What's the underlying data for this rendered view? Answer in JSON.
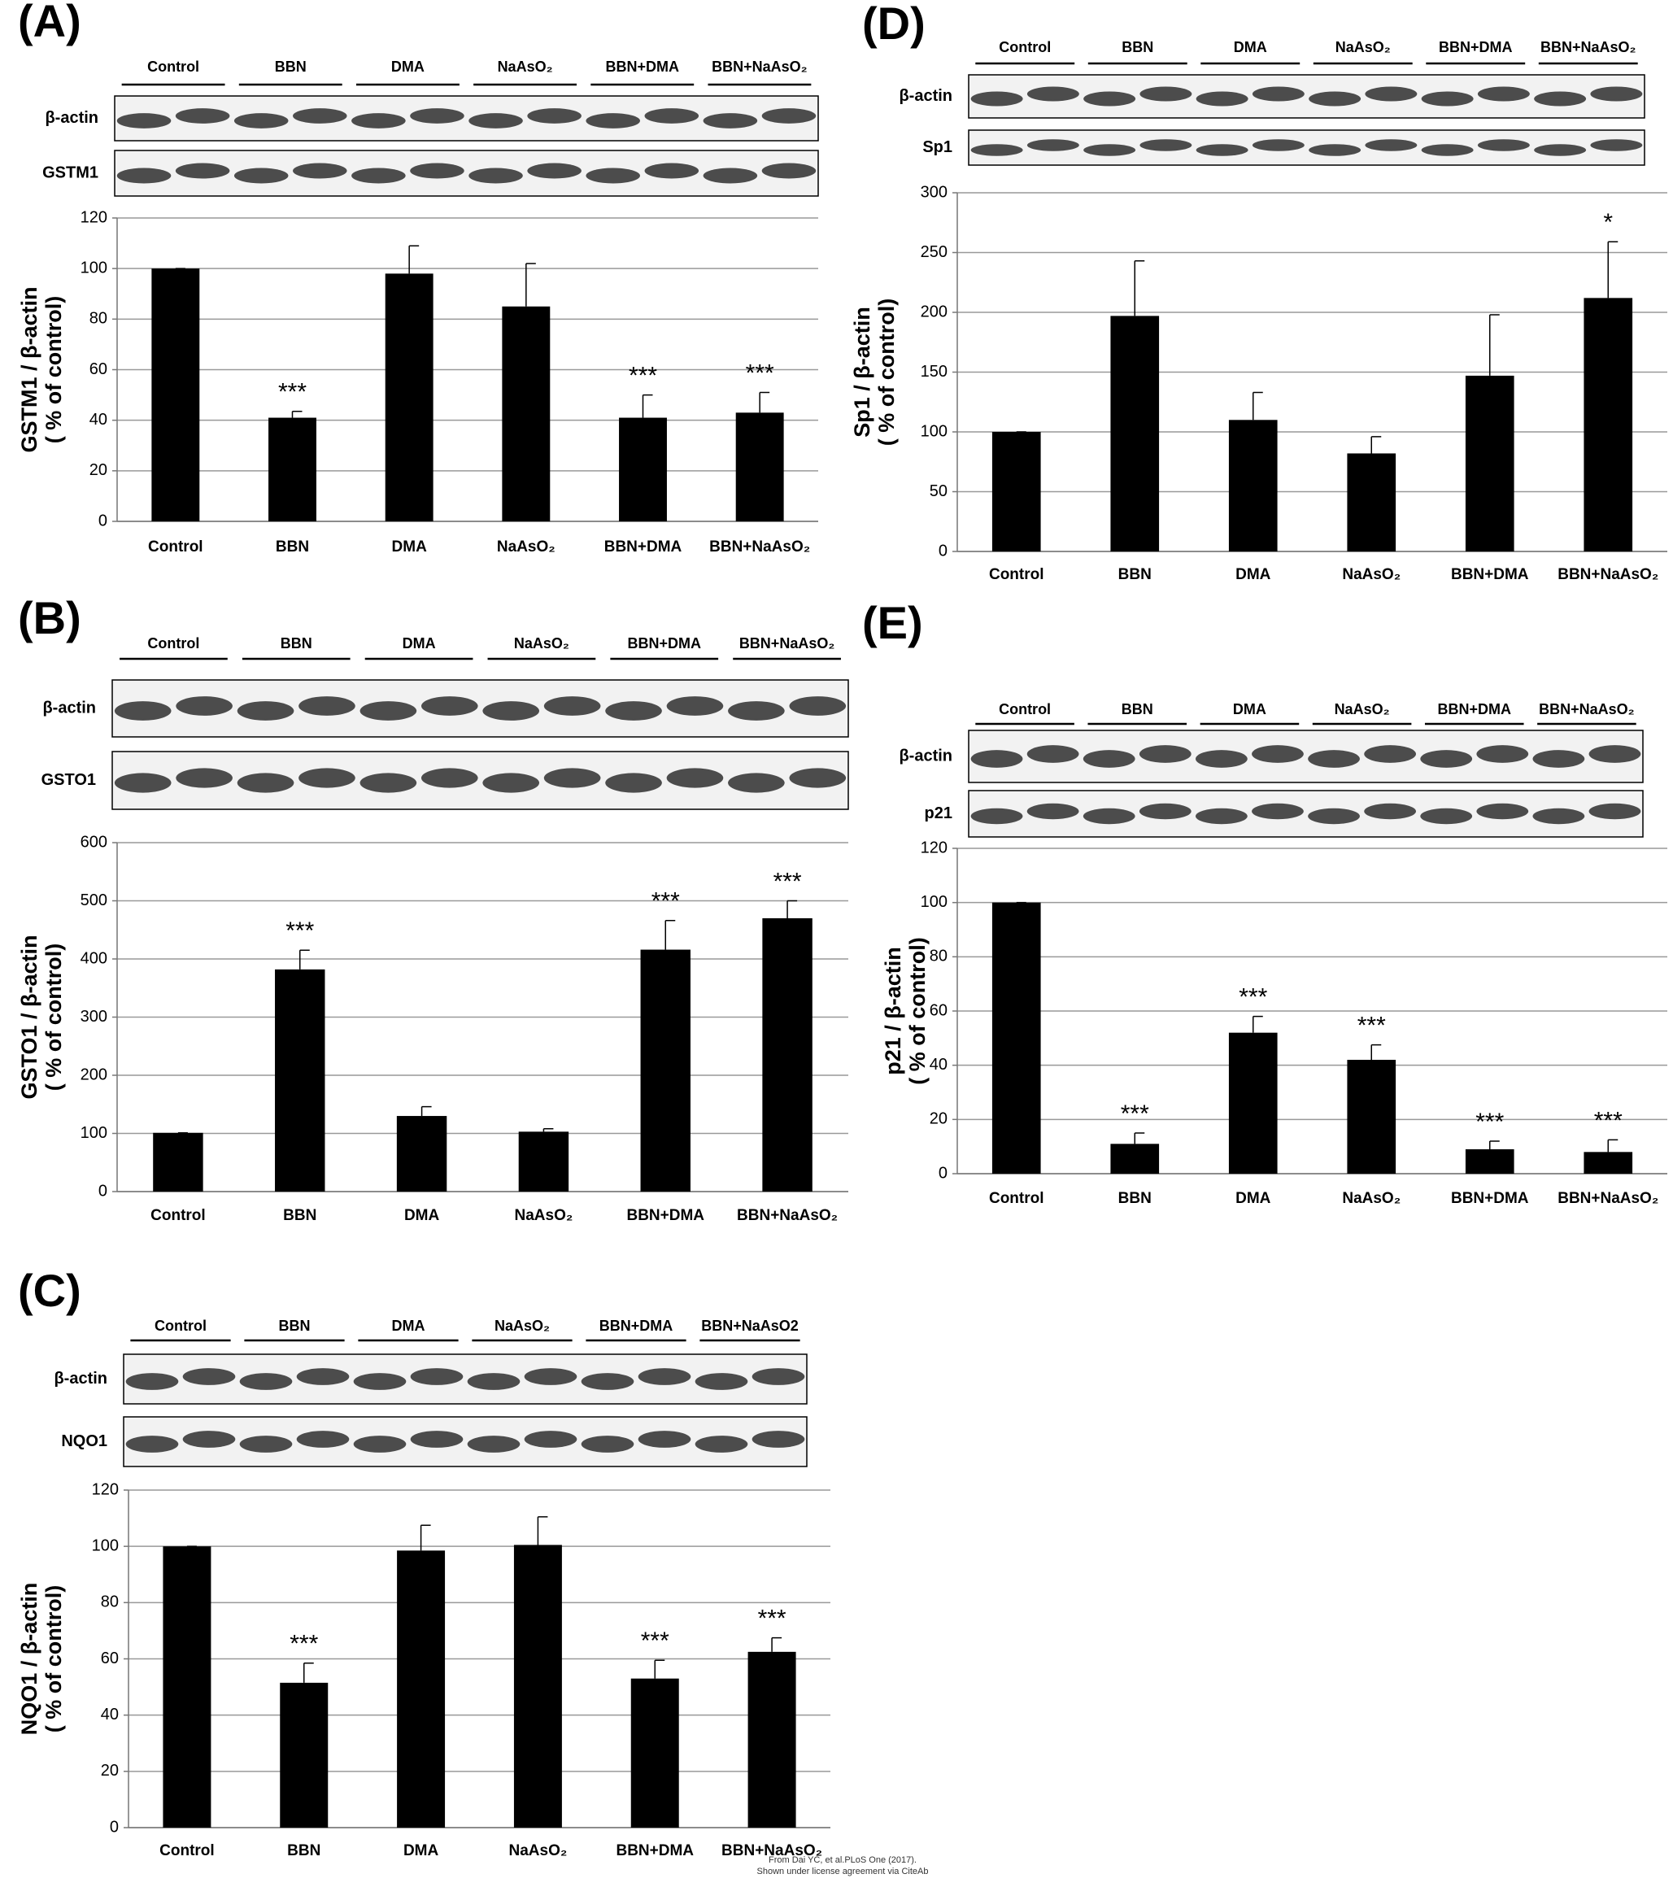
{
  "chart_data": [
    {
      "type": "bar",
      "panel_label": "(A)",
      "ylabel": [
        "GSTM1 / β-actin",
        "( % of control)"
      ],
      "blot": {
        "lanes": [
          "Control",
          "BBN",
          "DMA",
          "NaAsO₂",
          "BBN+DMA",
          "BBN+NaAsO₂"
        ],
        "rows": [
          "β-actin",
          "GSTM1"
        ]
      },
      "categories": [
        "Control",
        "BBN",
        "DMA",
        "NaAsO₂",
        "BBN+DMA",
        "BBN+NaAsO₂"
      ],
      "values": [
        100,
        41,
        98,
        85,
        41,
        43
      ],
      "errors": [
        0,
        2.5,
        11,
        17,
        9,
        8
      ],
      "value_annotations": [
        null,
        "***",
        null,
        null,
        "***",
        "***"
      ],
      "color": "#000000",
      "ylim": [
        0,
        120
      ],
      "yticks": [
        0,
        20,
        40,
        60,
        80,
        100,
        120
      ],
      "grid": true
    },
    {
      "type": "bar",
      "panel_label": "(B)",
      "ylabel": [
        "GSTO1 / β-actin",
        "( % of control)"
      ],
      "blot": {
        "lanes": [
          "Control",
          "BBN",
          "DMA",
          "NaAsO₂",
          "BBN+DMA",
          "BBN+NaAsO₂"
        ],
        "rows": [
          "β-actin",
          "GSTO1"
        ]
      },
      "categories": [
        "Control",
        "BBN",
        "DMA",
        "NaAsO₂",
        "BBN+DMA",
        "BBN+NaAsO₂"
      ],
      "values": [
        101,
        382,
        130,
        103,
        416,
        470
      ],
      "errors": [
        0,
        33,
        16,
        5,
        50,
        30
      ],
      "value_annotations": [
        null,
        "***",
        null,
        null,
        "***",
        "***"
      ],
      "color": "#000000",
      "ylim": [
        0,
        600
      ],
      "yticks": [
        0,
        100,
        200,
        300,
        400,
        500,
        600
      ],
      "grid": true
    },
    {
      "type": "bar",
      "panel_label": "(C)",
      "ylabel": [
        "NQO1 / β-actin",
        "( % of control)"
      ],
      "blot": {
        "lanes": [
          "Control",
          "BBN",
          "DMA",
          "NaAsO₂",
          "BBN+DMA",
          "BBN+NaAsO2"
        ],
        "rows": [
          "β-actin",
          "NQO1"
        ]
      },
      "categories": [
        "Control",
        "BBN",
        "DMA",
        "NaAsO₂",
        "BBN+DMA",
        "BBN+NaAsO₂"
      ],
      "values": [
        100,
        51.5,
        98.5,
        100.5,
        53,
        62.5
      ],
      "errors": [
        0,
        7,
        9,
        10,
        6.5,
        5
      ],
      "value_annotations": [
        null,
        "***",
        null,
        null,
        "***",
        "***"
      ],
      "color": "#000000",
      "ylim": [
        0,
        120
      ],
      "yticks": [
        0,
        20,
        40,
        60,
        80,
        100,
        120
      ],
      "grid": true
    },
    {
      "type": "bar",
      "panel_label": "(D)",
      "ylabel": [
        "Sp1 / β-actin",
        "( % of control)"
      ],
      "blot": {
        "lanes": [
          "Control",
          "BBN",
          "DMA",
          "NaAsO₂",
          "BBN+DMA",
          "BBN+NaAsO₂"
        ],
        "rows": [
          "β-actin",
          "Sp1"
        ]
      },
      "categories": [
        "Control",
        "BBN",
        "DMA",
        "NaAsO₂",
        "BBN+DMA",
        "BBN+NaAsO₂"
      ],
      "values": [
        100,
        197,
        110,
        82,
        147,
        212
      ],
      "errors": [
        0,
        46,
        23,
        14,
        51,
        47
      ],
      "value_annotations": [
        null,
        null,
        null,
        null,
        null,
        "*"
      ],
      "color": "#000000",
      "ylim": [
        0,
        300
      ],
      "yticks": [
        0,
        50,
        100,
        150,
        200,
        250,
        300
      ],
      "grid": true
    },
    {
      "type": "bar",
      "panel_label": "(E)",
      "ylabel": [
        "p21 / β-actin",
        "( % of control)"
      ],
      "blot": {
        "lanes": [
          "Control",
          "BBN",
          "DMA",
          "NaAsO₂",
          "BBN+DMA",
          "BBN+NaAsO₂"
        ],
        "rows": [
          "β-actin",
          "p21"
        ]
      },
      "categories": [
        "Control",
        "BBN",
        "DMA",
        "NaAsO₂",
        "BBN+DMA",
        "BBN+NaAsO₂"
      ],
      "values": [
        100,
        11,
        52,
        42,
        9,
        8
      ],
      "errors": [
        0,
        4,
        6,
        5.5,
        3,
        4.5
      ],
      "value_annotations": [
        null,
        "***",
        "***",
        "***",
        "***",
        "***"
      ],
      "color": "#000000",
      "ylim": [
        0,
        120
      ],
      "yticks": [
        0,
        20,
        40,
        60,
        80,
        100,
        120
      ],
      "grid": true
    }
  ],
  "credit": [
    "From Dai YC, et al.PLoS One (2017).",
    "Shown under license agreement via CiteAb"
  ]
}
